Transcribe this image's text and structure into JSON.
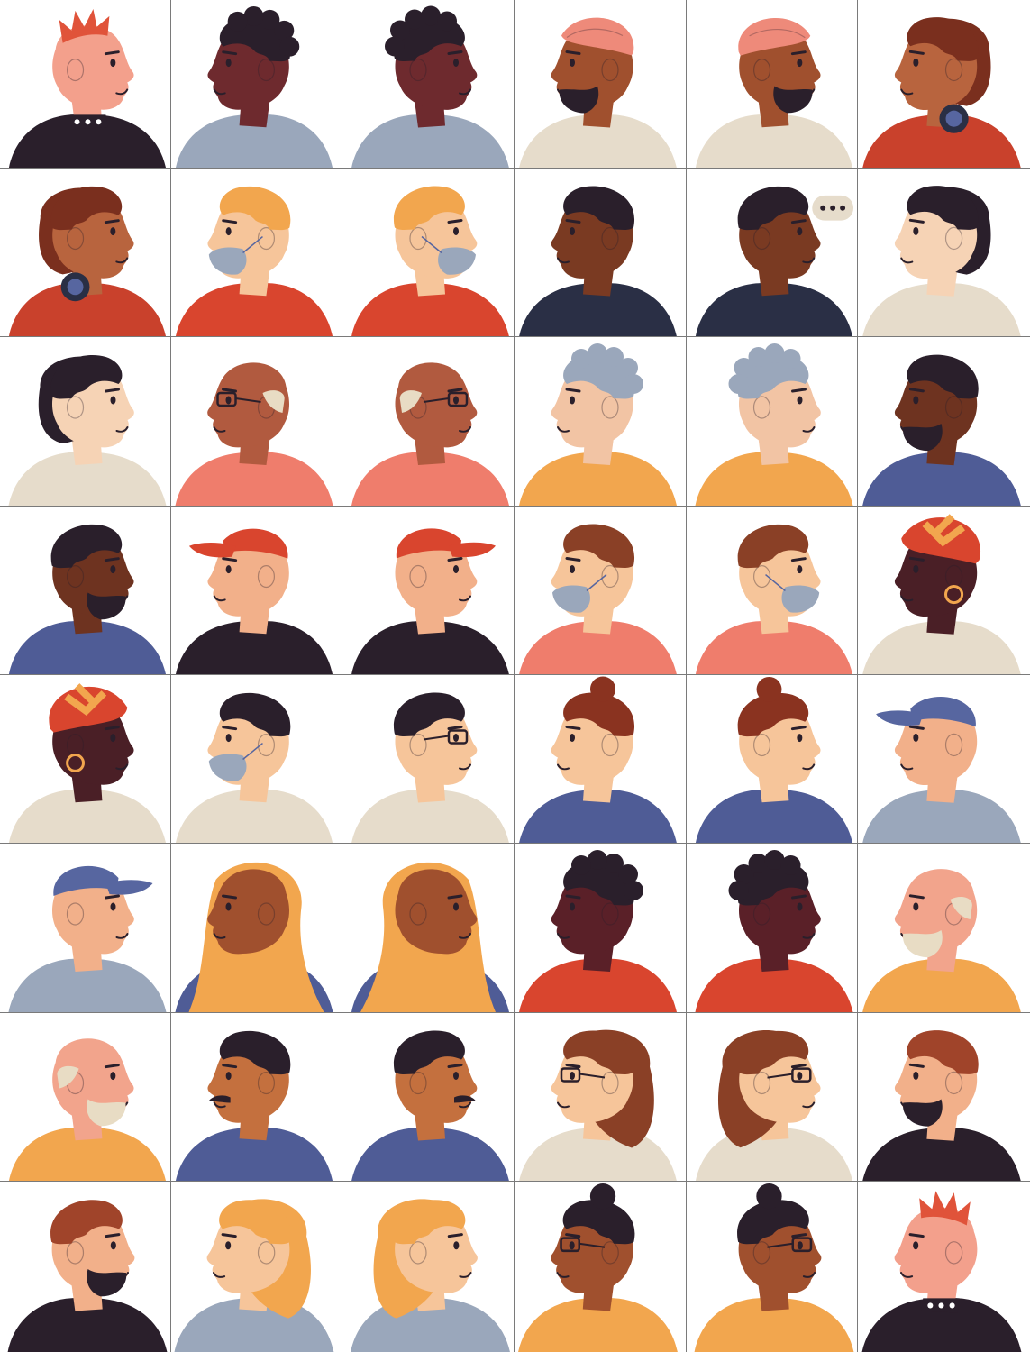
{
  "palette": {
    "background": "#ffffff",
    "grid_line": "#7a7a7a",
    "outline": "#2a1f2b"
  },
  "portraits": [
    {
      "desc": "punk-mohawk-spiked-collar",
      "facing": "right",
      "skin": "#f3a08c",
      "hair": "#e0533a",
      "hairStyle": "mohawk",
      "shirt": "#2a1f2b",
      "extra": "collar"
    },
    {
      "desc": "curly-hair-hoodie",
      "facing": "left",
      "skin": "#6e2a2e",
      "hair": "#2a1f2b",
      "hairStyle": "curly",
      "shirt": "#9aa7bb",
      "extra": ""
    },
    {
      "desc": "curly-hair-hoodie-talking",
      "facing": "right",
      "skin": "#6e2a2e",
      "hair": "#2a1f2b",
      "hairStyle": "curly",
      "shirt": "#9aa7bb",
      "extra": ""
    },
    {
      "desc": "turban-beard",
      "facing": "left",
      "skin": "#a0502e",
      "hair": "#ee8a7a",
      "hairStyle": "turban",
      "shirt": "#e6dccb",
      "extra": "beard"
    },
    {
      "desc": "turban-beard-gesturing",
      "facing": "right",
      "skin": "#a0502e",
      "hair": "#ee8a7a",
      "hairStyle": "turban",
      "shirt": "#e6dccb",
      "extra": "beard"
    },
    {
      "desc": "headphones-long-hair",
      "facing": "left",
      "skin": "#b8643e",
      "hair": "#7a2f1e",
      "hairStyle": "bob",
      "shirt": "#c9412c",
      "extra": "headphones"
    },
    {
      "desc": "headphones-long-hair-talking",
      "facing": "right",
      "skin": "#b8643e",
      "hair": "#7a2f1e",
      "hairStyle": "bob",
      "shirt": "#c9412c",
      "extra": "headphones"
    },
    {
      "desc": "blond-face-mask",
      "facing": "left",
      "skin": "#f6c59a",
      "hair": "#f2a64e",
      "hairStyle": "short",
      "shirt": "#d9452e",
      "extra": "mask"
    },
    {
      "desc": "blond-mask-down-waving",
      "facing": "right",
      "skin": "#f6c59a",
      "hair": "#f2a64e",
      "hairStyle": "short",
      "shirt": "#d9452e",
      "extra": "mask"
    },
    {
      "desc": "fade-haircut-turtleneck",
      "facing": "left",
      "skin": "#7a3a22",
      "hair": "#2a1f2b",
      "hairStyle": "short",
      "shirt": "#2a2f45",
      "extra": ""
    },
    {
      "desc": "fade-haircut-phone-speech-bubble",
      "facing": "right",
      "skin": "#7a3a22",
      "hair": "#2a1f2b",
      "hairStyle": "short",
      "shirt": "#2a2f45",
      "extra": "bubble"
    },
    {
      "desc": "black-bob-phone",
      "facing": "left",
      "skin": "#f6d3b5",
      "hair": "#2a1f2b",
      "hairStyle": "bob",
      "shirt": "#e6dccb",
      "extra": ""
    },
    {
      "desc": "black-bob-smiling",
      "facing": "right",
      "skin": "#f6d3b5",
      "hair": "#2a1f2b",
      "hairStyle": "bob",
      "shirt": "#e6dccb",
      "extra": ""
    },
    {
      "desc": "bald-older-man-glasses-adjusting",
      "facing": "left",
      "skin": "#b15a3f",
      "hair": "#e8dcc4",
      "hairStyle": "bald",
      "shirt": "#ef7d6c",
      "extra": "glasses"
    },
    {
      "desc": "bald-older-man-glasses-talking",
      "facing": "right",
      "skin": "#b15a3f",
      "hair": "#e8dcc4",
      "hairStyle": "bald",
      "shirt": "#ef7d6c",
      "extra": "glasses"
    },
    {
      "desc": "grey-curly-older-woman",
      "facing": "left",
      "skin": "#f2c4a4",
      "hair": "#9aa7bb",
      "hairStyle": "curly",
      "shirt": "#f2a64e",
      "extra": ""
    },
    {
      "desc": "grey-curly-older-woman-waving",
      "facing": "right",
      "skin": "#f2c4a4",
      "hair": "#9aa7bb",
      "hairStyle": "curly",
      "shirt": "#f2a64e",
      "extra": ""
    },
    {
      "desc": "short-hair-stubble",
      "facing": "left",
      "skin": "#6e3320",
      "hair": "#2a1f2b",
      "hairStyle": "short",
      "shirt": "#4f5c96",
      "extra": "beard"
    },
    {
      "desc": "short-hair-beard-thumb",
      "facing": "right",
      "skin": "#6e3320",
      "hair": "#2a1f2b",
      "hairStyle": "short",
      "shirt": "#4f5c96",
      "extra": "beard"
    },
    {
      "desc": "red-cap-black-shirt",
      "facing": "left",
      "skin": "#f2b08a",
      "hair": "#d9452e",
      "hairStyle": "cap",
      "shirt": "#2a1f2b",
      "extra": ""
    },
    {
      "desc": "red-cap-talking",
      "facing": "right",
      "skin": "#f2b08a",
      "hair": "#d9452e",
      "hairStyle": "cap",
      "shirt": "#2a1f2b",
      "extra": ""
    },
    {
      "desc": "brown-hair-mask-chin",
      "facing": "left",
      "skin": "#f6c59a",
      "hair": "#8a4026",
      "hairStyle": "short",
      "shirt": "#ef7d6c",
      "extra": "mask"
    },
    {
      "desc": "brown-hair-mask-chin-talking",
      "facing": "right",
      "skin": "#f6c59a",
      "hair": "#8a4026",
      "hairStyle": "short",
      "shirt": "#ef7d6c",
      "extra": "mask"
    },
    {
      "desc": "patterned-headwrap-hoop-earring",
      "facing": "left",
      "skin": "#4a1f26",
      "hair": "#d9452e",
      "hairStyle": "wrap",
      "shirt": "#e6dccb",
      "extra": "earring"
    },
    {
      "desc": "patterned-headwrap-talking",
      "facing": "right",
      "skin": "#4a1f26",
      "hair": "#d9452e",
      "hairStyle": "wrap",
      "shirt": "#e6dccb",
      "extra": "earring"
    },
    {
      "desc": "glasses-mask-collar-shirt",
      "facing": "left",
      "skin": "#f6c59a",
      "hair": "#2a1f2b",
      "hairStyle": "short",
      "shirt": "#e6dccb",
      "extra": "mask"
    },
    {
      "desc": "glasses-phone-glove",
      "facing": "right",
      "skin": "#f6c59a",
      "hair": "#2a1f2b",
      "hairStyle": "short",
      "shirt": "#e6dccb",
      "extra": "glasses"
    },
    {
      "desc": "hair-bun-phone-call",
      "facing": "left",
      "skin": "#f6c59a",
      "hair": "#8a3320",
      "hairStyle": "bun",
      "shirt": "#4f5c96",
      "extra": ""
    },
    {
      "desc": "hair-bun-video-call",
      "facing": "right",
      "skin": "#f6c59a",
      "hair": "#8a3320",
      "hairStyle": "bun",
      "shirt": "#4f5c96",
      "extra": ""
    },
    {
      "desc": "blue-cap-hoodie",
      "facing": "left",
      "skin": "#f2b08a",
      "hair": "#5766a0",
      "hairStyle": "cap",
      "shirt": "#9aa7bb",
      "extra": ""
    },
    {
      "desc": "blue-cap-hoodie-talking",
      "facing": "right",
      "skin": "#f2b08a",
      "hair": "#5766a0",
      "hairStyle": "cap",
      "shirt": "#9aa7bb",
      "extra": ""
    },
    {
      "desc": "orange-hijab",
      "facing": "left",
      "skin": "#a0502e",
      "hair": "#f2a64e",
      "hairStyle": "hijab",
      "shirt": "#4f5c96",
      "extra": ""
    },
    {
      "desc": "orange-hijab-talking",
      "facing": "right",
      "skin": "#a0502e",
      "hair": "#f2a64e",
      "hairStyle": "hijab",
      "shirt": "#4f5c96",
      "extra": ""
    },
    {
      "desc": "short-curly-hand-to-mouth",
      "facing": "left",
      "skin": "#5a2028",
      "hair": "#2a1f2b",
      "hairStyle": "curly",
      "shirt": "#d9452e",
      "extra": ""
    },
    {
      "desc": "short-curly-surprised",
      "facing": "right",
      "skin": "#5a2028",
      "hair": "#2a1f2b",
      "hairStyle": "curly",
      "shirt": "#d9452e",
      "extra": ""
    },
    {
      "desc": "bald-white-beard-hearing-aid",
      "facing": "left",
      "skin": "#f2a48c",
      "hair": "#e8dcc4",
      "hairStyle": "bald",
      "shirt": "#f2a64e",
      "extra": "beard"
    },
    {
      "desc": "bald-white-beard-gesturing",
      "facing": "right",
      "skin": "#f2a48c",
      "hair": "#e8dcc4",
      "hairStyle": "bald",
      "shirt": "#f2a64e",
      "extra": "beard"
    },
    {
      "desc": "mustache-blue-shirt",
      "facing": "left",
      "skin": "#c4703e",
      "hair": "#2a1f2b",
      "hairStyle": "short",
      "shirt": "#4f5c96",
      "extra": "mustache"
    },
    {
      "desc": "mustache-blue-shirt-talking",
      "facing": "right",
      "skin": "#c4703e",
      "hair": "#2a1f2b",
      "hairStyle": "short",
      "shirt": "#4f5c96",
      "extra": "mustache"
    },
    {
      "desc": "wavy-hair-red-glasses",
      "facing": "left",
      "skin": "#f6c59a",
      "hair": "#8a4026",
      "hairStyle": "long",
      "shirt": "#e6dccb",
      "extra": "glasses"
    },
    {
      "desc": "wavy-hair-red-glasses-pointing",
      "facing": "right",
      "skin": "#f6c59a",
      "hair": "#8a4026",
      "hairStyle": "long",
      "shirt": "#e6dccb",
      "extra": "glasses"
    },
    {
      "desc": "ginger-beard-turtleneck",
      "facing": "left",
      "skin": "#f2b08a",
      "hair": "#a0442a",
      "hairStyle": "short",
      "shirt": "#2a1f2b",
      "extra": "beard"
    },
    {
      "desc": "ginger-beard-phone-video",
      "facing": "right",
      "skin": "#f2b08a",
      "hair": "#a0442a",
      "hairStyle": "short",
      "shirt": "#2a1f2b",
      "extra": "beard"
    },
    {
      "desc": "blonde-ponytail-phone",
      "facing": "left",
      "skin": "#f6c59a",
      "hair": "#f2a64e",
      "hairStyle": "long",
      "shirt": "#9aa7bb",
      "extra": ""
    },
    {
      "desc": "blonde-ponytail-talking",
      "facing": "right",
      "skin": "#f6c59a",
      "hair": "#f2a64e",
      "hairStyle": "long",
      "shirt": "#9aa7bb",
      "extra": ""
    },
    {
      "desc": "dark-bun-glasses-scarf",
      "facing": "left",
      "skin": "#a0502e",
      "hair": "#2a1f2b",
      "hairStyle": "bun",
      "shirt": "#f2a64e",
      "extra": "glasses"
    },
    {
      "desc": "dark-bun-glasses-talking",
      "facing": "right",
      "skin": "#a0502e",
      "hair": "#2a1f2b",
      "hairStyle": "bun",
      "shirt": "#f2a64e",
      "extra": "glasses"
    },
    {
      "desc": "punk-mohawk-bubblegum",
      "facing": "left",
      "skin": "#f3a08c",
      "hair": "#e0533a",
      "hairStyle": "mohawk",
      "shirt": "#2a1f2b",
      "extra": "collar"
    }
  ]
}
